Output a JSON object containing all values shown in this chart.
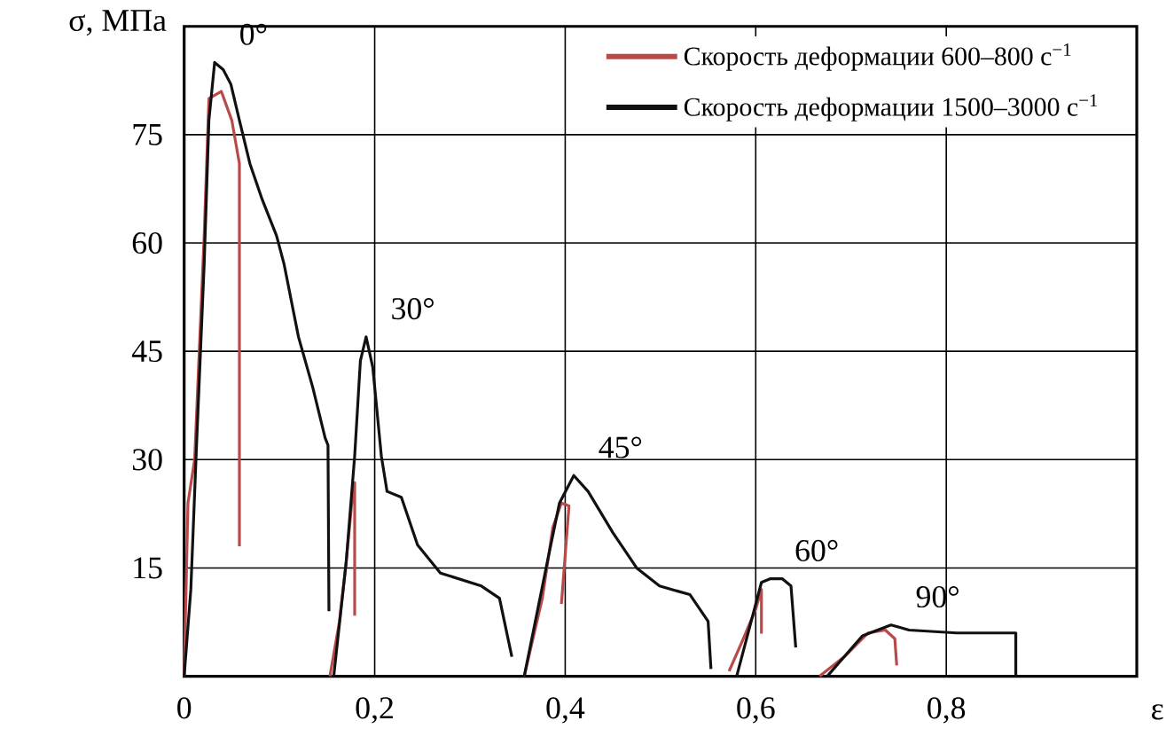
{
  "chart_data": {
    "type": "line",
    "xlabel": "ε",
    "ylabel": "σ, МПа",
    "xlim": [
      0,
      1.0
    ],
    "ylim": [
      0,
      90
    ],
    "xticks": [
      0,
      {
        "value": 0.2,
        "label": "0,2"
      },
      {
        "value": 0.4,
        "label": "0,4"
      },
      {
        "value": 0.6,
        "label": "0,6"
      },
      {
        "value": 0.8,
        "label": "0,8"
      }
    ],
    "yticks": [
      15,
      30,
      45,
      60,
      75
    ],
    "grid": true,
    "legend": "top right",
    "marker": "none",
    "line_style": "solid",
    "series": [
      {
        "name": "Скорость деформации 600–800 с$^{−1}$",
        "color": "#b84a4a",
        "x": [
          0.0,
          0.004,
          0.011,
          0.021,
          0.026,
          0.039,
          0.05,
          0.058,
          0.058,
          null,
          0.153,
          0.163,
          0.17,
          0.176,
          0.179,
          0.179,
          null,
          0.357,
          0.376,
          0.387,
          0.396,
          0.404,
          0.396,
          null,
          0.572,
          0.587,
          0.6,
          0.606,
          0.606,
          null,
          0.667,
          0.693,
          0.718,
          0.736,
          0.746,
          0.748
        ],
        "values": [
          0,
          24,
          30,
          61,
          80,
          81,
          77,
          71,
          18,
          null,
          0,
          7.6,
          15.7,
          24,
          26.8,
          8.4,
          null,
          0,
          10.8,
          20.6,
          24,
          23.6,
          10,
          null,
          0.7,
          5.2,
          9.3,
          12,
          5.9,
          null,
          0,
          2.7,
          6,
          6.4,
          5.2,
          1.5
        ]
      },
      {
        "name": "Скорость деформации 1500–3000 с$^{−1}$",
        "color": "#111111",
        "x": [
          0.0,
          0.007,
          0.013,
          0.021,
          0.026,
          0.032,
          0.041,
          0.049,
          0.058,
          0.069,
          0.082,
          0.097,
          0.105,
          0.12,
          0.135,
          0.148,
          0.151,
          0.152,
          null,
          0.157,
          0.17,
          0.179,
          0.185,
          0.191,
          0.198,
          0.207,
          0.213,
          0.228,
          0.245,
          0.269,
          0.312,
          0.331,
          0.344,
          null,
          0.357,
          0.381,
          0.394,
          0.409,
          0.424,
          0.45,
          0.475,
          0.499,
          0.531,
          0.55,
          0.553,
          null,
          0.58,
          0.59,
          0.6,
          0.606,
          0.615,
          0.628,
          0.637,
          0.642,
          null,
          0.675,
          0.712,
          0.742,
          0.761,
          0.811,
          0.873,
          0.873
        ],
        "values": [
          0,
          12,
          32,
          57,
          77,
          85,
          84,
          82,
          77,
          71,
          66,
          61,
          57,
          47,
          40,
          33,
          32,
          9,
          null,
          0,
          15.7,
          30.5,
          43.7,
          47,
          42.8,
          30.5,
          25.6,
          24.8,
          18.2,
          14.3,
          12.5,
          10.8,
          2.7,
          null,
          0,
          15.7,
          24,
          27.8,
          25.6,
          19.9,
          15,
          12.5,
          11.3,
          7.6,
          1,
          null,
          0,
          5,
          10,
          13,
          13.5,
          13.5,
          12.5,
          4,
          null,
          0,
          5.6,
          7.1,
          6.4,
          6,
          6,
          0
        ]
      }
    ],
    "annotations": [
      "0°",
      "30°",
      "45°",
      "60°",
      "90°"
    ]
  }
}
